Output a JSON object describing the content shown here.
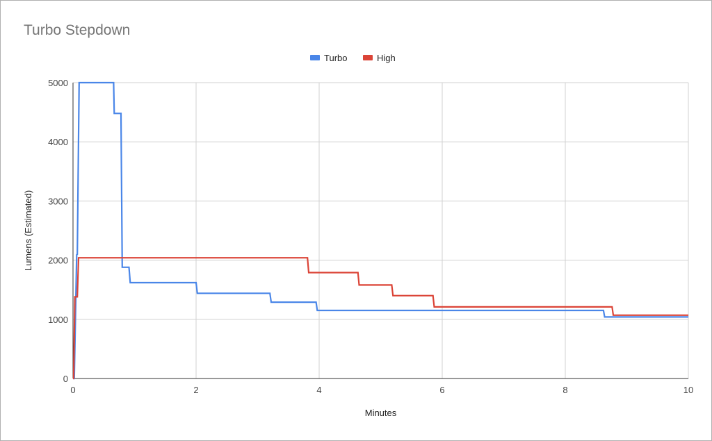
{
  "chart_data": {
    "type": "line",
    "title": "Turbo Stepdown",
    "xlabel": "Minutes",
    "ylabel": "Lumens (Estimated)",
    "xlim": [
      0,
      10
    ],
    "ylim": [
      0,
      5000
    ],
    "xticks": [
      "0",
      "2",
      "4",
      "6",
      "8",
      "10"
    ],
    "yticks": [
      "0",
      "1000",
      "2000",
      "3000",
      "4000",
      "5000"
    ],
    "grid": true,
    "legend_position": "top",
    "series": [
      {
        "name": "Turbo",
        "color": "#4a86e8",
        "points": [
          [
            0,
            0
          ],
          [
            0.02,
            0
          ],
          [
            0.06,
            2090
          ],
          [
            0.07,
            2100
          ],
          [
            0.1,
            5000
          ],
          [
            0.66,
            5000
          ],
          [
            0.67,
            4480
          ],
          [
            0.78,
            4480
          ],
          [
            0.8,
            1880
          ],
          [
            0.91,
            1880
          ],
          [
            0.93,
            1620
          ],
          [
            2.0,
            1620
          ],
          [
            2.02,
            1440
          ],
          [
            3.2,
            1440
          ],
          [
            3.22,
            1290
          ],
          [
            3.95,
            1290
          ],
          [
            3.97,
            1150
          ],
          [
            8.62,
            1150
          ],
          [
            8.64,
            1040
          ],
          [
            10,
            1040
          ]
        ]
      },
      {
        "name": "High",
        "color": "#db4437",
        "points": [
          [
            0,
            0
          ],
          [
            0.01,
            0
          ],
          [
            0.03,
            1380
          ],
          [
            0.07,
            1380
          ],
          [
            0.09,
            2040
          ],
          [
            3.81,
            2040
          ],
          [
            3.83,
            1790
          ],
          [
            4.63,
            1790
          ],
          [
            4.65,
            1580
          ],
          [
            5.18,
            1580
          ],
          [
            5.2,
            1400
          ],
          [
            5.85,
            1400
          ],
          [
            5.87,
            1210
          ],
          [
            8.76,
            1210
          ],
          [
            8.78,
            1070
          ],
          [
            10,
            1070
          ]
        ]
      }
    ]
  }
}
